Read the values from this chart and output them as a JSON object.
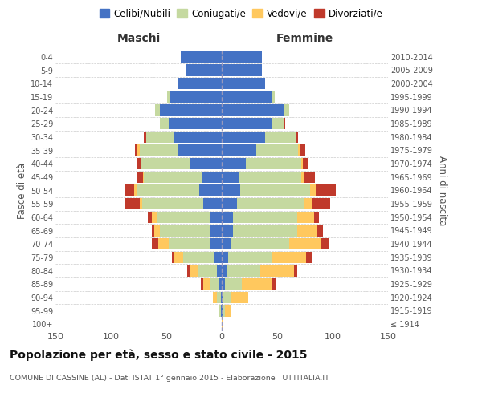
{
  "age_groups": [
    "100+",
    "95-99",
    "90-94",
    "85-89",
    "80-84",
    "75-79",
    "70-74",
    "65-69",
    "60-64",
    "55-59",
    "50-54",
    "45-49",
    "40-44",
    "35-39",
    "30-34",
    "25-29",
    "20-24",
    "15-19",
    "10-14",
    "5-9",
    "0-4"
  ],
  "birth_years": [
    "≤ 1914",
    "1915-1919",
    "1920-1924",
    "1925-1929",
    "1930-1934",
    "1935-1939",
    "1940-1944",
    "1945-1949",
    "1950-1954",
    "1955-1959",
    "1960-1964",
    "1965-1969",
    "1970-1974",
    "1975-1979",
    "1980-1984",
    "1985-1989",
    "1990-1994",
    "1995-1999",
    "2000-2004",
    "2005-2009",
    "2010-2014"
  ],
  "colors": {
    "celibi": "#4472c4",
    "coniugati": "#c5d9a0",
    "vedovi": "#ffc85e",
    "divorziati": "#c0392b"
  },
  "maschi": {
    "celibi": [
      0,
      1,
      1,
      2,
      4,
      7,
      10,
      11,
      10,
      17,
      20,
      18,
      28,
      39,
      43,
      48,
      56,
      47,
      40,
      32,
      37
    ],
    "coniugati": [
      0,
      1,
      3,
      8,
      18,
      28,
      38,
      45,
      48,
      55,
      57,
      52,
      45,
      35,
      25,
      8,
      4,
      2,
      0,
      0,
      0
    ],
    "vedovi": [
      0,
      1,
      4,
      7,
      7,
      8,
      9,
      5,
      5,
      2,
      2,
      1,
      0,
      2,
      0,
      0,
      0,
      0,
      0,
      0,
      0
    ],
    "divorziati": [
      0,
      0,
      0,
      2,
      2,
      2,
      6,
      2,
      4,
      13,
      9,
      6,
      4,
      2,
      2,
      0,
      0,
      0,
      0,
      0,
      0
    ]
  },
  "femmine": {
    "celibi": [
      0,
      1,
      1,
      3,
      5,
      6,
      9,
      10,
      10,
      14,
      17,
      16,
      22,
      31,
      39,
      46,
      56,
      46,
      39,
      36,
      36
    ],
    "coniugati": [
      0,
      2,
      8,
      15,
      30,
      40,
      52,
      58,
      58,
      60,
      63,
      56,
      50,
      38,
      28,
      10,
      5,
      2,
      0,
      0,
      0
    ],
    "vedovi": [
      1,
      5,
      15,
      28,
      30,
      30,
      28,
      18,
      15,
      8,
      5,
      2,
      1,
      1,
      0,
      0,
      0,
      0,
      0,
      0,
      0
    ],
    "divorziati": [
      0,
      0,
      0,
      3,
      3,
      5,
      8,
      5,
      5,
      16,
      18,
      10,
      5,
      5,
      2,
      1,
      0,
      0,
      0,
      0,
      0
    ]
  },
  "title": "Popolazione per età, sesso e stato civile - 2015",
  "subtitle": "COMUNE DI CASSINE (AL) - Dati ISTAT 1° gennaio 2015 - Elaborazione TUTTITALIA.IT",
  "xlabel_maschi": "Maschi",
  "xlabel_femmine": "Femmine",
  "ylabel_left": "Fasce di età",
  "ylabel_right": "Anni di nascita",
  "xlim": 150,
  "background_color": "#ffffff"
}
